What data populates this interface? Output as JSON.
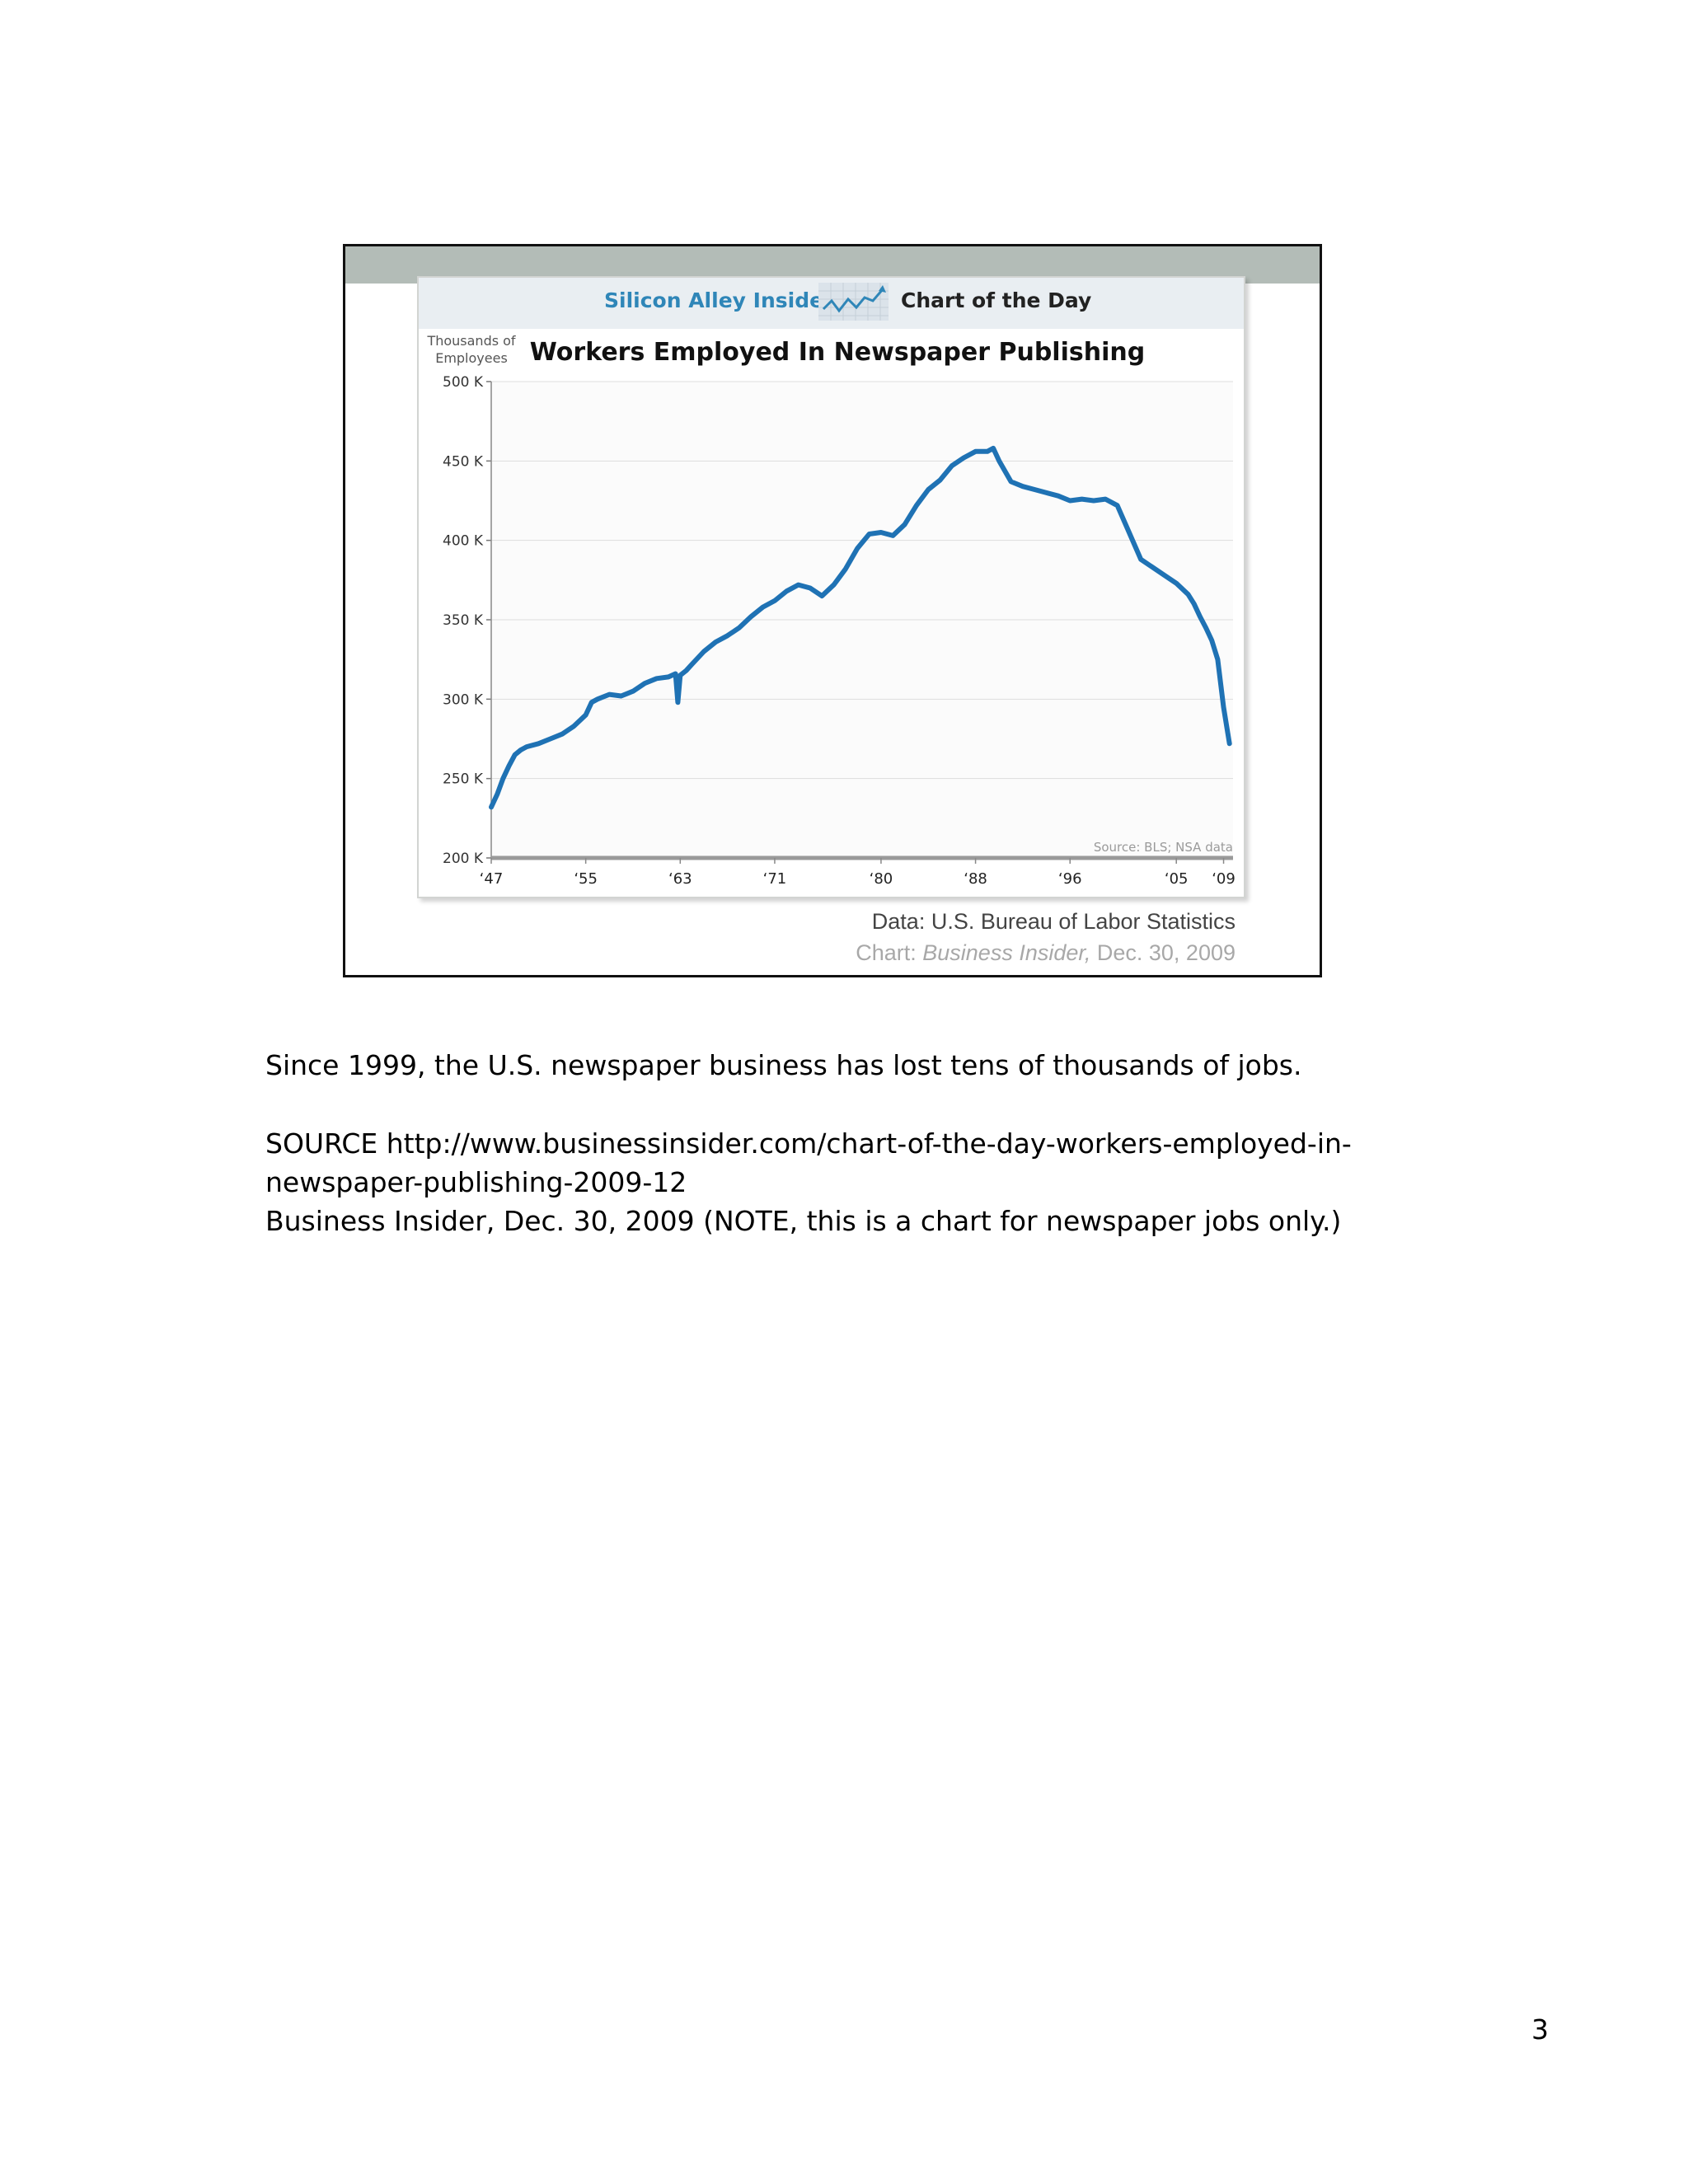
{
  "slide": {
    "header": {
      "brand": "Silicon Alley Insider",
      "tagline": "Chart of the Day",
      "logo_icon": "trend-line-chart-icon"
    },
    "credits": {
      "data": "Data: U.S. Bureau of Labor Statistics",
      "chart_prefix": "Chart: ",
      "chart_publication": "Business Insider,",
      "chart_date": " Dec. 30, 2009"
    }
  },
  "chart_data": {
    "type": "line",
    "title": "Workers Employed In Newspaper Publishing",
    "ylabel": "Thousands of Employees",
    "xlabel": "",
    "source_note": "Source: BLS; NSA data",
    "ylim": [
      200,
      500
    ],
    "xlim": [
      1947,
      2009.8
    ],
    "yticks": [
      200,
      250,
      300,
      350,
      400,
      450,
      500
    ],
    "ytick_labels": [
      "200 K",
      "250 K",
      "300 K",
      "350 K",
      "400 K",
      "450 K",
      "500 K"
    ],
    "xticks": [
      1947,
      1955,
      1963,
      1971,
      1980,
      1988,
      1996,
      2005,
      2009
    ],
    "xtick_labels": [
      "‘47",
      "‘55",
      "‘63",
      "‘71",
      "‘80",
      "‘88",
      "‘96",
      "‘05",
      "‘09"
    ],
    "grid": true,
    "line_color": "#1f72b4",
    "series": [
      {
        "x": [
          1947,
          1947.5,
          1948,
          1948.5,
          1949,
          1949.5,
          1950,
          1951,
          1952,
          1953,
          1954,
          1955,
          1955.5,
          1956,
          1957,
          1958,
          1959,
          1960,
          1961,
          1962,
          1962.6,
          1962.8,
          1963,
          1963.5,
          1964,
          1965,
          1966,
          1967,
          1968,
          1969,
          1970,
          1971,
          1972,
          1973,
          1974,
          1975,
          1976,
          1977,
          1978,
          1979,
          1980,
          1981,
          1982,
          1983,
          1984,
          1985,
          1986,
          1987,
          1988,
          1989,
          1989.5,
          1990,
          1991,
          1992,
          1993,
          1994,
          1995,
          1996,
          1997,
          1998,
          1999,
          2000,
          2001,
          2002,
          2003,
          2004,
          2005,
          2006,
          2006.5,
          2007,
          2007.5,
          2008,
          2008.5,
          2009,
          2009.5
        ],
        "y": [
          232,
          240,
          250,
          258,
          265,
          268,
          270,
          272,
          275,
          278,
          283,
          290,
          298,
          300,
          303,
          302,
          305,
          310,
          313,
          314,
          316,
          298,
          315,
          318,
          322,
          330,
          336,
          340,
          345,
          352,
          358,
          362,
          368,
          372,
          370,
          365,
          372,
          382,
          395,
          404,
          405,
          403,
          410,
          422,
          432,
          438,
          447,
          452,
          456,
          456,
          458,
          450,
          437,
          434,
          432,
          430,
          428,
          425,
          426,
          425,
          426,
          422,
          405,
          388,
          383,
          378,
          373,
          366,
          360,
          352,
          345,
          337,
          325,
          295,
          272
        ]
      }
    ]
  },
  "page": {
    "summary": "Since 1999, the U.S. newspaper business has lost tens of thousands of jobs.",
    "source_line1": "SOURCE http://www.businessinsider.com/chart-of-the-day-workers-employed-in-",
    "source_line2": "newspaper-publishing-2009-12",
    "source_line3": "Business Insider, Dec. 30, 2009 (NOTE, this is a chart for newspaper jobs only.)",
    "page_number": "3"
  }
}
